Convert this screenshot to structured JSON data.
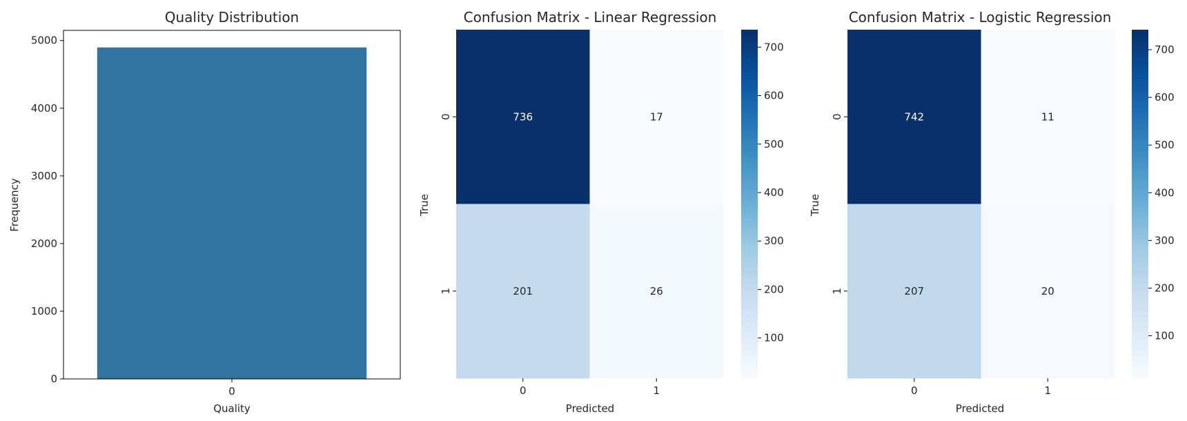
{
  "chart_data": [
    {
      "type": "bar",
      "title": "Quality Distribution",
      "xlabel": "Quality",
      "ylabel": "Frequency",
      "categories": [
        "0"
      ],
      "values": [
        4898
      ],
      "ylim": [
        0,
        5150
      ],
      "yticks": [
        "0",
        "1000",
        "2000",
        "3000",
        "4000",
        "5000"
      ],
      "bar_color": "#3274a1"
    },
    {
      "type": "heatmap",
      "title": "Confusion Matrix - Linear Regression",
      "xlabel": "Predicted",
      "ylabel": "True",
      "x_categories": [
        "0",
        "1"
      ],
      "y_categories": [
        "0",
        "1"
      ],
      "values": [
        [
          736,
          17
        ],
        [
          201,
          26
        ]
      ],
      "colormap": "Blues",
      "colorbar_ticks": [
        "100",
        "200",
        "300",
        "400",
        "500",
        "600",
        "700"
      ],
      "vmin": 17,
      "vmax": 736
    },
    {
      "type": "heatmap",
      "title": "Confusion Matrix - Logistic Regression",
      "xlabel": "Predicted",
      "ylabel": "True",
      "x_categories": [
        "0",
        "1"
      ],
      "y_categories": [
        "0",
        "1"
      ],
      "values": [
        [
          742,
          11
        ],
        [
          207,
          20
        ]
      ],
      "colormap": "Blues",
      "colorbar_ticks": [
        "100",
        "200",
        "300",
        "400",
        "500",
        "600",
        "700"
      ],
      "vmin": 11,
      "vmax": 742
    }
  ]
}
